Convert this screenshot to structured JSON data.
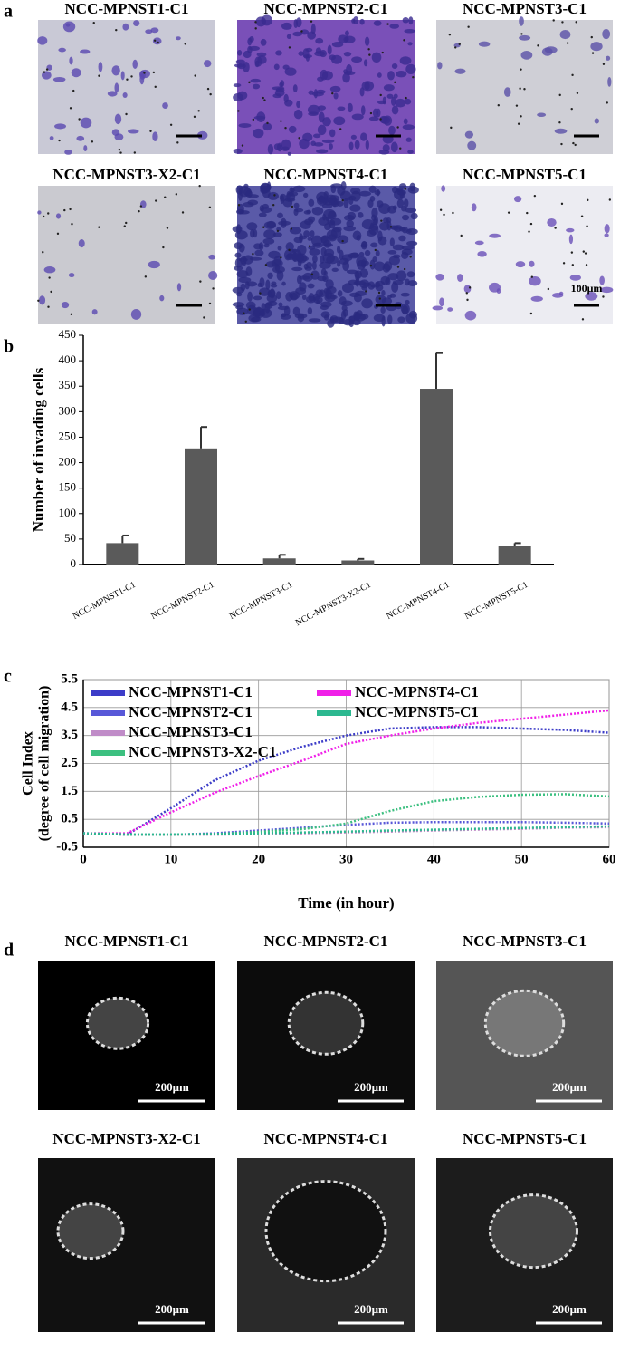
{
  "panel_a": {
    "label": "a",
    "images": [
      {
        "title": "NCC-MPNST1-C1"
      },
      {
        "title": "NCC-MPNST2-C1"
      },
      {
        "title": "NCC-MPNST3-C1"
      },
      {
        "title": "NCC-MPNST3-X2-C1"
      },
      {
        "title": "NCC-MPNST4-C1"
      },
      {
        "title": "NCC-MPNST5-C1",
        "scale": "100μm"
      }
    ]
  },
  "chart_data": [
    {
      "type": "bar",
      "label": "b",
      "ylabel": "Number of invading cells",
      "color": "#5a5a5a",
      "categories": [
        "NCC-MPNST1-C1",
        "NCC-MPNST2-C1",
        "NCC-MPNST3-C1",
        "NCC-MPNST3-X2-C1",
        "NCC-MPNST4-C1",
        "NCC-MPNST5-C1"
      ],
      "values": [
        42,
        228,
        12,
        8,
        345,
        37
      ],
      "errors": [
        15,
        42,
        7,
        3,
        70,
        5
      ],
      "ylim": [
        0,
        450
      ],
      "yticks": [
        0,
        50,
        100,
        150,
        200,
        250,
        300,
        350,
        400,
        450
      ]
    },
    {
      "type": "line",
      "label": "c",
      "ylabel": [
        "Cell Index",
        "(degree of cell migration)"
      ],
      "xlabel": "Time (in hour)",
      "x": [
        0,
        5,
        10,
        15,
        20,
        25,
        30,
        35,
        40,
        45,
        50,
        55,
        60
      ],
      "xlim": [
        0,
        60
      ],
      "xticks": [
        0,
        10,
        20,
        30,
        40,
        50,
        60
      ],
      "ylim": [
        -0.5,
        5.5
      ],
      "yticks": [
        -0.5,
        0.5,
        1.5,
        2.5,
        3.5,
        4.5,
        5.5
      ],
      "grid": true,
      "series": [
        {
          "name": "NCC-MPNST1-C1",
          "color": "#3c3cc8",
          "values": [
            0,
            -0.05,
            0.9,
            1.9,
            2.6,
            3.1,
            3.5,
            3.75,
            3.8,
            3.8,
            3.75,
            3.7,
            3.6
          ]
        },
        {
          "name": "NCC-MPNST2-C1",
          "color": "#5858d8",
          "values": [
            0,
            -0.05,
            -0.05,
            0,
            0.1,
            0.2,
            0.3,
            0.38,
            0.4,
            0.4,
            0.4,
            0.38,
            0.35
          ]
        },
        {
          "name": "NCC-MPNST3-C1",
          "color": "#c08cc8",
          "values": [
            0,
            -0.05,
            -0.05,
            -0.05,
            -0.03,
            0,
            0.03,
            0.06,
            0.1,
            0.13,
            0.16,
            0.2,
            0.22
          ]
        },
        {
          "name": "NCC-MPNST3-X2-C1",
          "color": "#3cc080",
          "values": [
            0,
            -0.05,
            -0.05,
            -0.03,
            0.05,
            0.15,
            0.35,
            0.8,
            1.15,
            1.3,
            1.38,
            1.4,
            1.32
          ]
        },
        {
          "name": "NCC-MPNST4-C1",
          "color": "#f020e8",
          "values": [
            0,
            0,
            0.75,
            1.45,
            2.05,
            2.6,
            3.2,
            3.5,
            3.75,
            3.95,
            4.1,
            4.25,
            4.4
          ]
        },
        {
          "name": "NCC-MPNST5-C1",
          "color": "#2cb890",
          "values": [
            0,
            -0.04,
            -0.04,
            -0.03,
            0,
            0.03,
            0.06,
            0.1,
            0.13,
            0.16,
            0.19,
            0.22,
            0.25
          ]
        }
      ]
    }
  ],
  "panel_d": {
    "label": "d",
    "images": [
      {
        "title": "NCC-MPNST1-C1",
        "scale": "200μm"
      },
      {
        "title": "NCC-MPNST2-C1",
        "scale": "200μm"
      },
      {
        "title": "NCC-MPNST3-C1",
        "scale": "200μm"
      },
      {
        "title": "NCC-MPNST3-X2-C1",
        "scale": "200μm"
      },
      {
        "title": "NCC-MPNST4-C1",
        "scale": "200μm"
      },
      {
        "title": "NCC-MPNST5-C1",
        "scale": "200μm"
      }
    ]
  }
}
